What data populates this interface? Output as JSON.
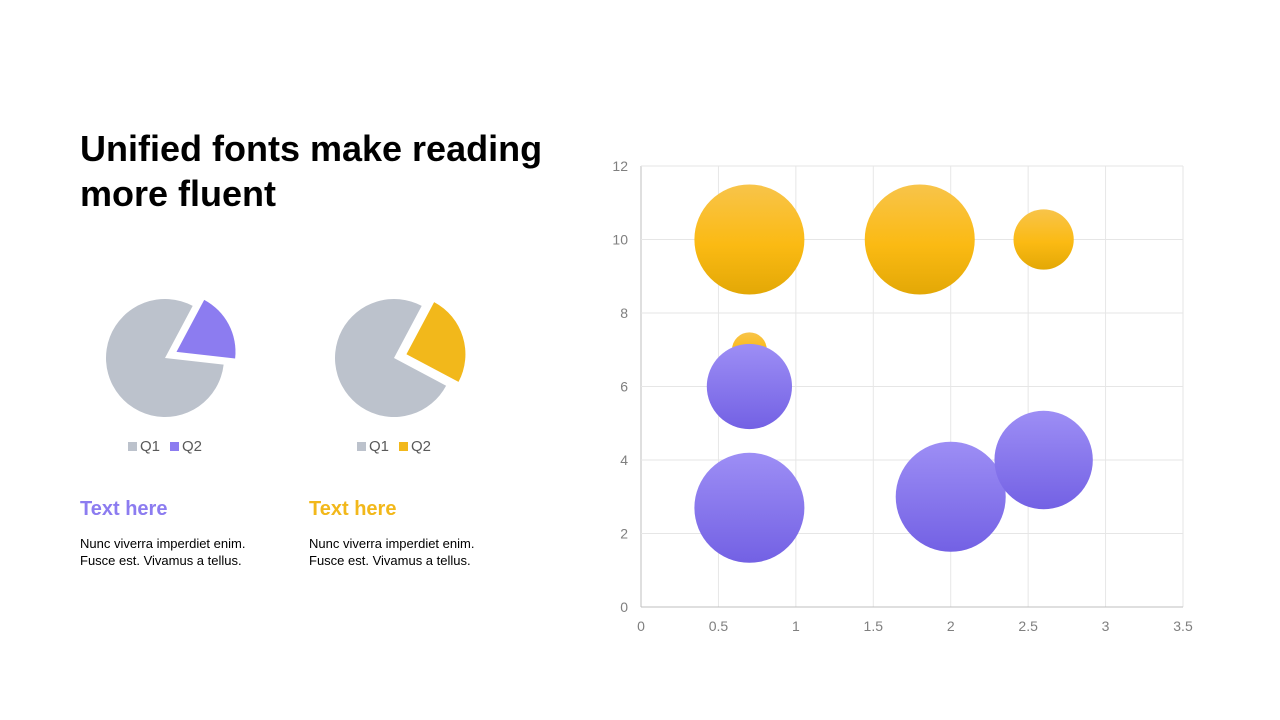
{
  "slide": {
    "title": "Unified fonts make reading more fluent"
  },
  "colors": {
    "gray": "#BCC2CC",
    "purple": "#8C7CF0",
    "gold": "#F2B81B"
  },
  "pies": [
    {
      "legend": [
        "Q1",
        "Q2"
      ],
      "accent": "purple",
      "heading": "Text here",
      "body": "Nunc viverra imperdiet enim.\nFusce est. Vivamus a tellus."
    },
    {
      "legend": [
        "Q1",
        "Q2"
      ],
      "accent": "gold",
      "heading": "Text here",
      "body": "Nunc viverra imperdiet enim.\nFusce est. Vivamus a tellus."
    }
  ],
  "chart_data": [
    {
      "type": "pie",
      "categories": [
        "Q1",
        "Q2"
      ],
      "values": [
        81,
        19
      ],
      "exploded": "Q2"
    },
    {
      "type": "pie",
      "categories": [
        "Q1",
        "Q2"
      ],
      "values": [
        75,
        25
      ],
      "exploded": "Q2"
    },
    {
      "type": "bubble",
      "xlim": [
        0,
        3.5
      ],
      "ylim": [
        0,
        12
      ],
      "xticks": [
        "0",
        "0.5",
        "1",
        "1.5",
        "2",
        "2.5",
        "3",
        "3.5"
      ],
      "yticks": [
        "0",
        "2",
        "4",
        "6",
        "8",
        "10",
        "12"
      ],
      "grid": true,
      "series": [
        {
          "color": "gold",
          "points": [
            {
              "x": 0.7,
              "y": 10,
              "size": 10
            },
            {
              "x": 1.8,
              "y": 10,
              "size": 10
            },
            {
              "x": 2.6,
              "y": 10,
              "size": 3
            },
            {
              "x": 0.7,
              "y": 7,
              "size": 1
            }
          ]
        },
        {
          "color": "purple",
          "points": [
            {
              "x": 0.7,
              "y": 6,
              "size": 6
            },
            {
              "x": 0.7,
              "y": 2.7,
              "size": 10
            },
            {
              "x": 2.0,
              "y": 3,
              "size": 10
            },
            {
              "x": 2.6,
              "y": 4,
              "size": 8
            }
          ]
        }
      ]
    }
  ]
}
